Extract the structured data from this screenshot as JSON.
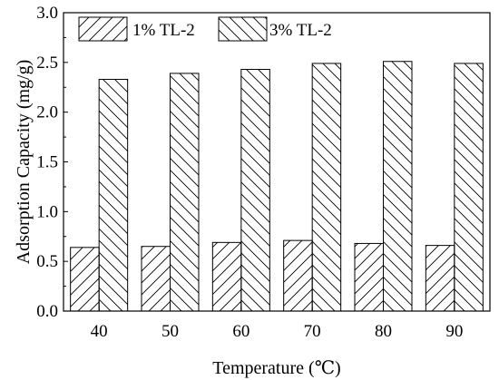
{
  "chart_data": {
    "type": "bar",
    "title": "",
    "xlabel": "Temperature (℃)",
    "ylabel": "Adsorption Capacity (mg/g)",
    "categories": [
      "40",
      "50",
      "60",
      "70",
      "80",
      "90"
    ],
    "series": [
      {
        "name": "1% TL-2",
        "values": [
          0.64,
          0.65,
          0.69,
          0.71,
          0.68,
          0.66
        ],
        "pattern": "forward-diagonal-hatch"
      },
      {
        "name": "3% TL-2",
        "values": [
          2.33,
          2.39,
          2.43,
          2.49,
          2.51,
          2.49
        ],
        "pattern": "backward-diagonal-hatch"
      }
    ],
    "ylim": [
      0,
      3.0
    ],
    "yticks": [
      "0.0",
      "0.5",
      "1.0",
      "1.5",
      "2.0",
      "2.5",
      "3.0"
    ],
    "grid": false,
    "legend_position": "top-left"
  },
  "colors": {
    "bar_stroke": "#000000",
    "bar_fill": "#ffffff",
    "hatch": "#000000"
  }
}
